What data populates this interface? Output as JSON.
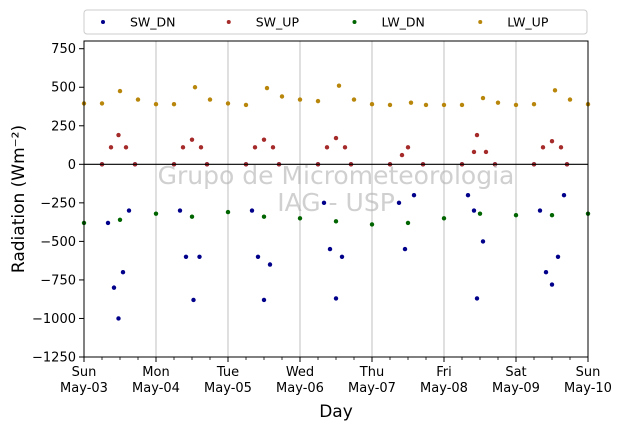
{
  "chart_data": {
    "type": "scatter",
    "xlabel": "Day",
    "ylabel": "Radiation (Wm⁻²)",
    "ylim": [
      -1250,
      800
    ],
    "xlim": [
      "2020-05-03",
      "2020-05-10"
    ],
    "grid": "vertical",
    "legend_position": "top",
    "watermark": [
      "Grupo de Micrometeorologia",
      "IAG - USP"
    ],
    "yticks": [
      {
        "label": "750",
        "value": 750
      },
      {
        "label": "500",
        "value": 500
      },
      {
        "label": "250",
        "value": 250
      },
      {
        "label": "0",
        "value": 0
      },
      {
        "label": "−250",
        "value": -250
      },
      {
        "label": "−500",
        "value": -500
      },
      {
        "label": "−750",
        "value": -750
      },
      {
        "label": "−1000",
        "value": -1000
      },
      {
        "label": "−1250",
        "value": -1250
      }
    ],
    "xticks": [
      {
        "day": "Sun",
        "date": "May-03",
        "value": "2020-05-03"
      },
      {
        "day": "Mon",
        "date": "May-04",
        "value": "2020-05-04"
      },
      {
        "day": "Tue",
        "date": "May-05",
        "value": "2020-05-05"
      },
      {
        "day": "Wed",
        "date": "May-06",
        "value": "2020-05-06"
      },
      {
        "day": "Thu",
        "date": "May-07",
        "value": "2020-05-07"
      },
      {
        "day": "Fri",
        "date": "May-08",
        "value": "2020-05-08"
      },
      {
        "day": "Sat",
        "date": "May-09",
        "value": "2020-05-09"
      },
      {
        "day": "Sun",
        "date": "May-10",
        "value": "2020-05-10"
      }
    ],
    "reference_line": {
      "y": 0,
      "color": "#000000"
    },
    "series": [
      {
        "name": "SW_DN",
        "color": "#00008b",
        "points": [
          [
            "2020-05-03 06:00",
            0
          ],
          [
            "2020-05-03 08:00",
            -380
          ],
          [
            "2020-05-03 10:00",
            -800
          ],
          [
            "2020-05-03 11:30",
            -1000
          ],
          [
            "2020-05-03 13:00",
            -700
          ],
          [
            "2020-05-03 15:00",
            -300
          ],
          [
            "2020-05-03 17:00",
            0
          ],
          [
            "2020-05-04 06:00",
            0
          ],
          [
            "2020-05-04 08:00",
            -300
          ],
          [
            "2020-05-04 10:00",
            -600
          ],
          [
            "2020-05-04 12:30",
            -880
          ],
          [
            "2020-05-04 14:30",
            -600
          ],
          [
            "2020-05-04 17:00",
            0
          ],
          [
            "2020-05-05 06:00",
            0
          ],
          [
            "2020-05-05 08:00",
            -300
          ],
          [
            "2020-05-05 10:00",
            -600
          ],
          [
            "2020-05-05 12:00",
            -880
          ],
          [
            "2020-05-05 14:00",
            -650
          ],
          [
            "2020-05-05 17:00",
            0
          ],
          [
            "2020-05-06 06:00",
            0
          ],
          [
            "2020-05-06 08:00",
            -250
          ],
          [
            "2020-05-06 10:00",
            -550
          ],
          [
            "2020-05-06 12:00",
            -870
          ],
          [
            "2020-05-06 14:00",
            -600
          ],
          [
            "2020-05-06 17:00",
            0
          ],
          [
            "2020-05-07 06:00",
            0
          ],
          [
            "2020-05-07 09:00",
            -250
          ],
          [
            "2020-05-07 11:00",
            -550
          ],
          [
            "2020-05-07 14:00",
            -200
          ],
          [
            "2020-05-07 17:00",
            0
          ],
          [
            "2020-05-08 06:00",
            0
          ],
          [
            "2020-05-08 08:00",
            -200
          ],
          [
            "2020-05-08 10:00",
            -300
          ],
          [
            "2020-05-08 11:00",
            -870
          ],
          [
            "2020-05-08 13:00",
            -500
          ],
          [
            "2020-05-08 17:00",
            0
          ],
          [
            "2020-05-09 06:00",
            0
          ],
          [
            "2020-05-09 08:00",
            -300
          ],
          [
            "2020-05-09 10:00",
            -700
          ],
          [
            "2020-05-09 12:00",
            -780
          ],
          [
            "2020-05-09 14:00",
            -600
          ],
          [
            "2020-05-09 16:00",
            -200
          ],
          [
            "2020-05-09 17:00",
            0
          ]
        ]
      },
      {
        "name": "SW_UP",
        "color": "#a52a2a",
        "points": [
          [
            "2020-05-03 06:00",
            0
          ],
          [
            "2020-05-03 09:00",
            110
          ],
          [
            "2020-05-03 11:30",
            190
          ],
          [
            "2020-05-03 14:00",
            110
          ],
          [
            "2020-05-03 17:00",
            0
          ],
          [
            "2020-05-04 06:00",
            0
          ],
          [
            "2020-05-04 09:00",
            110
          ],
          [
            "2020-05-04 12:00",
            160
          ],
          [
            "2020-05-04 15:00",
            110
          ],
          [
            "2020-05-04 17:00",
            0
          ],
          [
            "2020-05-05 06:00",
            0
          ],
          [
            "2020-05-05 09:00",
            110
          ],
          [
            "2020-05-05 12:00",
            160
          ],
          [
            "2020-05-05 15:00",
            110
          ],
          [
            "2020-05-05 17:00",
            0
          ],
          [
            "2020-05-06 06:00",
            0
          ],
          [
            "2020-05-06 09:00",
            110
          ],
          [
            "2020-05-06 12:00",
            170
          ],
          [
            "2020-05-06 15:00",
            110
          ],
          [
            "2020-05-06 17:00",
            0
          ],
          [
            "2020-05-07 06:00",
            0
          ],
          [
            "2020-05-07 10:00",
            60
          ],
          [
            "2020-05-07 12:00",
            110
          ],
          [
            "2020-05-07 17:00",
            0
          ],
          [
            "2020-05-08 06:00",
            0
          ],
          [
            "2020-05-08 10:00",
            80
          ],
          [
            "2020-05-08 11:00",
            190
          ],
          [
            "2020-05-08 14:00",
            80
          ],
          [
            "2020-05-08 17:00",
            0
          ],
          [
            "2020-05-09 06:00",
            0
          ],
          [
            "2020-05-09 09:00",
            110
          ],
          [
            "2020-05-09 12:00",
            150
          ],
          [
            "2020-05-09 15:00",
            110
          ],
          [
            "2020-05-09 17:00",
            0
          ]
        ]
      },
      {
        "name": "LW_DN",
        "color": "#006400",
        "points": [
          [
            "2020-05-03 00:00",
            -380
          ],
          [
            "2020-05-03 12:00",
            -360
          ],
          [
            "2020-05-04 00:00",
            -320
          ],
          [
            "2020-05-04 12:00",
            -340
          ],
          [
            "2020-05-05 00:00",
            -310
          ],
          [
            "2020-05-05 12:00",
            -340
          ],
          [
            "2020-05-06 00:00",
            -350
          ],
          [
            "2020-05-06 12:00",
            -370
          ],
          [
            "2020-05-07 00:00",
            -390
          ],
          [
            "2020-05-07 12:00",
            -380
          ],
          [
            "2020-05-08 00:00",
            -350
          ],
          [
            "2020-05-08 12:00",
            -320
          ],
          [
            "2020-05-09 00:00",
            -330
          ],
          [
            "2020-05-09 12:00",
            -330
          ],
          [
            "2020-05-10 00:00",
            -320
          ]
        ]
      },
      {
        "name": "LW_UP",
        "color": "#b8860b",
        "points": [
          [
            "2020-05-03 00:00",
            395
          ],
          [
            "2020-05-03 06:00",
            395
          ],
          [
            "2020-05-03 12:00",
            475
          ],
          [
            "2020-05-03 18:00",
            420
          ],
          [
            "2020-05-04 00:00",
            390
          ],
          [
            "2020-05-04 06:00",
            390
          ],
          [
            "2020-05-04 13:00",
            500
          ],
          [
            "2020-05-04 18:00",
            420
          ],
          [
            "2020-05-05 00:00",
            395
          ],
          [
            "2020-05-05 06:00",
            385
          ],
          [
            "2020-05-05 13:00",
            495
          ],
          [
            "2020-05-05 18:00",
            440
          ],
          [
            "2020-05-06 00:00",
            420
          ],
          [
            "2020-05-06 06:00",
            410
          ],
          [
            "2020-05-06 13:00",
            510
          ],
          [
            "2020-05-06 18:00",
            420
          ],
          [
            "2020-05-07 00:00",
            390
          ],
          [
            "2020-05-07 06:00",
            385
          ],
          [
            "2020-05-07 13:00",
            400
          ],
          [
            "2020-05-07 18:00",
            385
          ],
          [
            "2020-05-08 00:00",
            385
          ],
          [
            "2020-05-08 06:00",
            385
          ],
          [
            "2020-05-08 13:00",
            430
          ],
          [
            "2020-05-08 18:00",
            400
          ],
          [
            "2020-05-09 00:00",
            385
          ],
          [
            "2020-05-09 06:00",
            390
          ],
          [
            "2020-05-09 13:00",
            480
          ],
          [
            "2020-05-09 18:00",
            420
          ],
          [
            "2020-05-10 00:00",
            390
          ]
        ]
      }
    ]
  }
}
